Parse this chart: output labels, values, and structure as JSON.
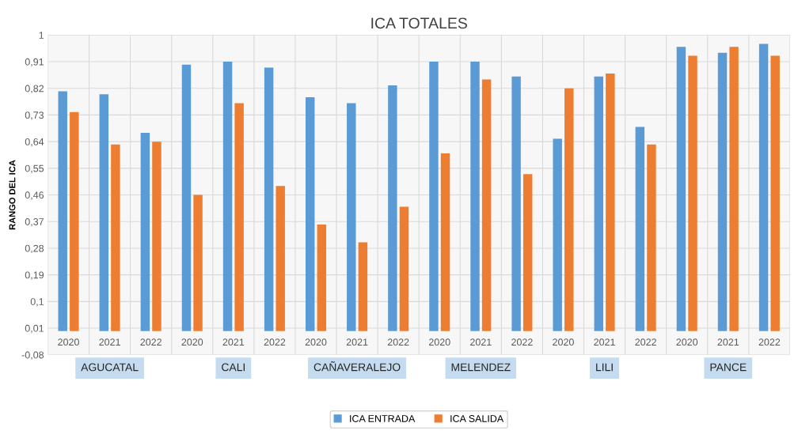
{
  "chart_data": {
    "type": "bar",
    "title": "ICA TOTALES",
    "ylabel": "RANGO DEL ICA",
    "categories": [
      "2020",
      "2021",
      "2022",
      "2020",
      "2021",
      "2022",
      "2020",
      "2021",
      "2022",
      "2020",
      "2021",
      "2022",
      "2020",
      "2021",
      "2022",
      "2020",
      "2021",
      "2022"
    ],
    "series": [
      {
        "name": "ICA ENTRADA",
        "color": "#5b9bd5",
        "values": [
          0.81,
          0.8,
          0.67,
          0.9,
          0.91,
          0.89,
          0.79,
          0.77,
          0.83,
          0.91,
          0.91,
          0.86,
          0.65,
          0.86,
          0.69,
          0.96,
          0.94,
          0.97
        ]
      },
      {
        "name": "ICA SALIDA",
        "color": "#ed7d31",
        "values": [
          0.74,
          0.63,
          0.64,
          0.46,
          0.77,
          0.49,
          0.36,
          0.3,
          0.42,
          0.6,
          0.85,
          0.53,
          0.82,
          0.87,
          0.63,
          0.93,
          0.96,
          0.93
        ]
      }
    ],
    "annotations": [
      "AGUCATAL",
      "CALI",
      "CAÑAVERALEJO",
      "MELENDEZ",
      "LILI",
      "PANCE"
    ],
    "ylim": [
      -0.08,
      1
    ],
    "yticks": [
      {
        "value": -0.08,
        "label": "-0,08"
      },
      {
        "value": 0.01,
        "label": "0,01"
      },
      {
        "value": 0.1,
        "label": "0,1"
      },
      {
        "value": 0.19,
        "label": "0,19"
      },
      {
        "value": 0.28,
        "label": "0,28"
      },
      {
        "value": 0.37,
        "label": "0,37"
      },
      {
        "value": 0.46,
        "label": "0,46"
      },
      {
        "value": 0.55,
        "label": "0,55"
      },
      {
        "value": 0.64,
        "label": "0,64"
      },
      {
        "value": 0.73,
        "label": "0,73"
      },
      {
        "value": 0.82,
        "label": "0,82"
      },
      {
        "value": 0.91,
        "label": "0,91"
      },
      1
    ],
    "grid": true,
    "legend": "bottom"
  }
}
